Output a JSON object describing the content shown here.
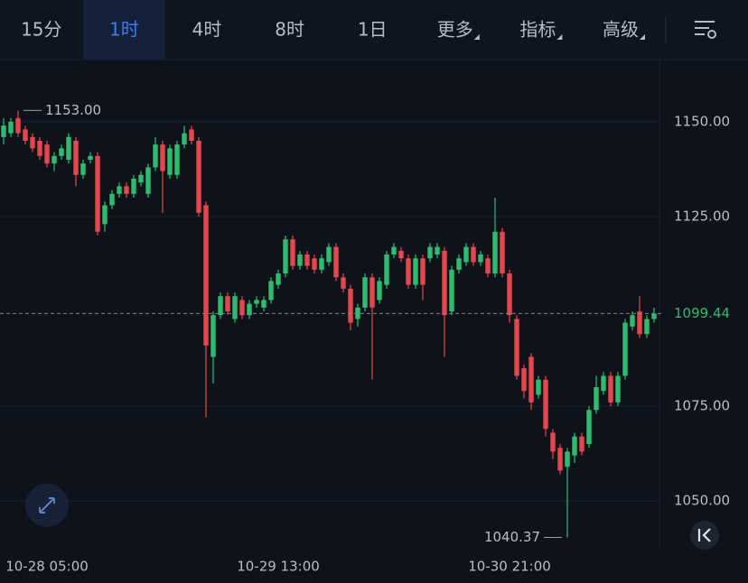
{
  "tabs": [
    {
      "label": "15分",
      "dropdown": false
    },
    {
      "label": "1时",
      "dropdown": false
    },
    {
      "label": "4时",
      "dropdown": false
    },
    {
      "label": "8时",
      "dropdown": false
    },
    {
      "label": "1日",
      "dropdown": false
    },
    {
      "label": "更多",
      "dropdown": true
    },
    {
      "label": "指标",
      "dropdown": true
    },
    {
      "label": "高级",
      "dropdown": true
    }
  ],
  "active_tab": 1,
  "chart_data": {
    "type": "candlestick",
    "categories": [
      null,
      null,
      null,
      null,
      null,
      null,
      "10-28 05:00",
      null,
      null,
      null,
      null,
      null,
      null,
      null,
      null,
      null,
      null,
      null,
      null,
      null,
      null,
      null,
      null,
      null,
      null,
      null,
      null,
      null,
      null,
      null,
      null,
      null,
      null,
      null,
      null,
      null,
      null,
      null,
      "10-29 13:00",
      null,
      null,
      null,
      null,
      null,
      null,
      null,
      null,
      null,
      null,
      null,
      null,
      null,
      null,
      null,
      null,
      null,
      null,
      null,
      null,
      null,
      null,
      null,
      null,
      null,
      null,
      null,
      null,
      null,
      null,
      null,
      "10-30 21:00",
      null,
      null,
      null,
      null,
      null,
      null,
      null,
      null,
      null,
      null,
      null,
      null,
      null,
      null,
      null,
      null,
      null,
      null,
      null,
      null
    ],
    "open": [
      1146,
      1147,
      1151,
      1148,
      1146,
      1145,
      1144,
      1139,
      1141,
      1140,
      1145,
      1136,
      1140,
      1141,
      1123,
      1128,
      1131,
      1133,
      1131,
      1134,
      1131,
      1138,
      1144,
      1136,
      1136,
      1144,
      1148,
      1145,
      1128,
      1088,
      1099,
      1104,
      1098,
      1103,
      1099,
      1102,
      1101,
      1103,
      1107,
      1110,
      1119,
      1112,
      1115,
      1114,
      1111,
      1113,
      1117,
      1109,
      1106,
      1098,
      1101,
      1109,
      1103,
      1107,
      1115,
      1116,
      1114,
      1107,
      1114,
      1114,
      1115,
      1116,
      1100,
      1111,
      1113,
      1117,
      1113,
      1114,
      1110,
      1121,
      1110,
      1098,
      1085,
      1088,
      1078,
      1082,
      1068,
      1064,
      1059,
      1062,
      1067,
      1065,
      1074,
      1079,
      1083,
      1076,
      1083,
      1096,
      1100,
      1094,
      1098
    ],
    "high": [
      1151,
      1151,
      1153,
      1149,
      1147,
      1146,
      1145,
      1142,
      1144,
      1147,
      1146,
      1140,
      1142,
      1142,
      1129,
      1132,
      1134,
      1134,
      1136,
      1137,
      1139,
      1146,
      1145,
      1144,
      1145,
      1149,
      1149,
      1146,
      1129,
      1100,
      1105,
      1105,
      1105,
      1104,
      1103,
      1104,
      1104,
      1109,
      1111,
      1120,
      1120,
      1116,
      1116,
      1115,
      1115,
      1118,
      1118,
      1110,
      1107,
      1102,
      1110,
      1110,
      1109,
      1116,
      1118,
      1117,
      1115,
      1115,
      1115,
      1118,
      1118,
      1117,
      1112,
      1115,
      1118,
      1118,
      1116,
      1115,
      1130,
      1122,
      1111,
      1099,
      1086,
      1089,
      1083,
      1083,
      1069,
      1065,
      1064,
      1068,
      1068,
      1075,
      1083,
      1084,
      1084,
      1084,
      1098,
      1100,
      1104,
      1099,
      1101
    ],
    "low": [
      1144,
      1146,
      1146,
      1144,
      1142,
      1140,
      1138,
      1137,
      1140,
      1139,
      1133,
      1135,
      1139,
      1120,
      1121,
      1127,
      1130,
      1130,
      1130,
      1133,
      1130,
      1137,
      1126,
      1135,
      1135,
      1143,
      1144,
      1125,
      1072,
      1081,
      1098,
      1099,
      1097,
      1098,
      1098,
      1101,
      1100,
      1102,
      1106,
      1109,
      1111,
      1111,
      1111,
      1110,
      1110,
      1112,
      1108,
      1105,
      1095,
      1096,
      1100,
      1082,
      1102,
      1106,
      1114,
      1113,
      1106,
      1106,
      1103,
      1113,
      1114,
      1088,
      1099,
      1110,
      1112,
      1112,
      1112,
      1109,
      1109,
      1109,
      1097,
      1082,
      1077,
      1074,
      1077,
      1067,
      1061,
      1057,
      1040.37,
      1060,
      1062,
      1064,
      1073,
      1078,
      1075,
      1075,
      1082,
      1095,
      1093,
      1093,
      1097
    ],
    "close": [
      1149,
      1150,
      1147,
      1145,
      1143,
      1141,
      1139,
      1141,
      1143,
      1146,
      1136,
      1139,
      1141,
      1121,
      1128,
      1131,
      1133,
      1131,
      1135,
      1136,
      1138,
      1144,
      1137,
      1143,
      1144,
      1147,
      1145,
      1126,
      1091,
      1099,
      1104,
      1100,
      1104,
      1099,
      1102,
      1103,
      1103,
      1108,
      1110,
      1119,
      1112,
      1115,
      1112,
      1111,
      1114,
      1117,
      1109,
      1106,
      1097,
      1101,
      1109,
      1101,
      1108,
      1115,
      1117,
      1114,
      1107,
      1114,
      1107,
      1117,
      1117,
      1099,
      1111,
      1114,
      1117,
      1113,
      1115,
      1110,
      1121,
      1110,
      1099,
      1083,
      1079,
      1076,
      1082,
      1069,
      1063,
      1058,
      1063,
      1067,
      1063,
      1074,
      1080,
      1083,
      1076,
      1083,
      1097,
      1099,
      1094,
      1098,
      1099.44
    ],
    "up_color": "#2ebd6e",
    "down_color": "#e5474d",
    "ylim": [
      1037.4,
      1165.95
    ],
    "yticks": [
      {
        "value": 1050,
        "label": "1050.00"
      },
      {
        "value": 1075,
        "label": "1075.00"
      },
      {
        "value": 1125,
        "label": "1125.00"
      },
      {
        "value": 1150,
        "label": "1150.00"
      }
    ],
    "grid": true,
    "high_marker": {
      "value": 1153,
      "label": "1153.00"
    },
    "low_marker": {
      "value": 1040.37,
      "label": "1040.37"
    },
    "last_price": {
      "value": 1099.44,
      "label": "1099.44"
    }
  }
}
